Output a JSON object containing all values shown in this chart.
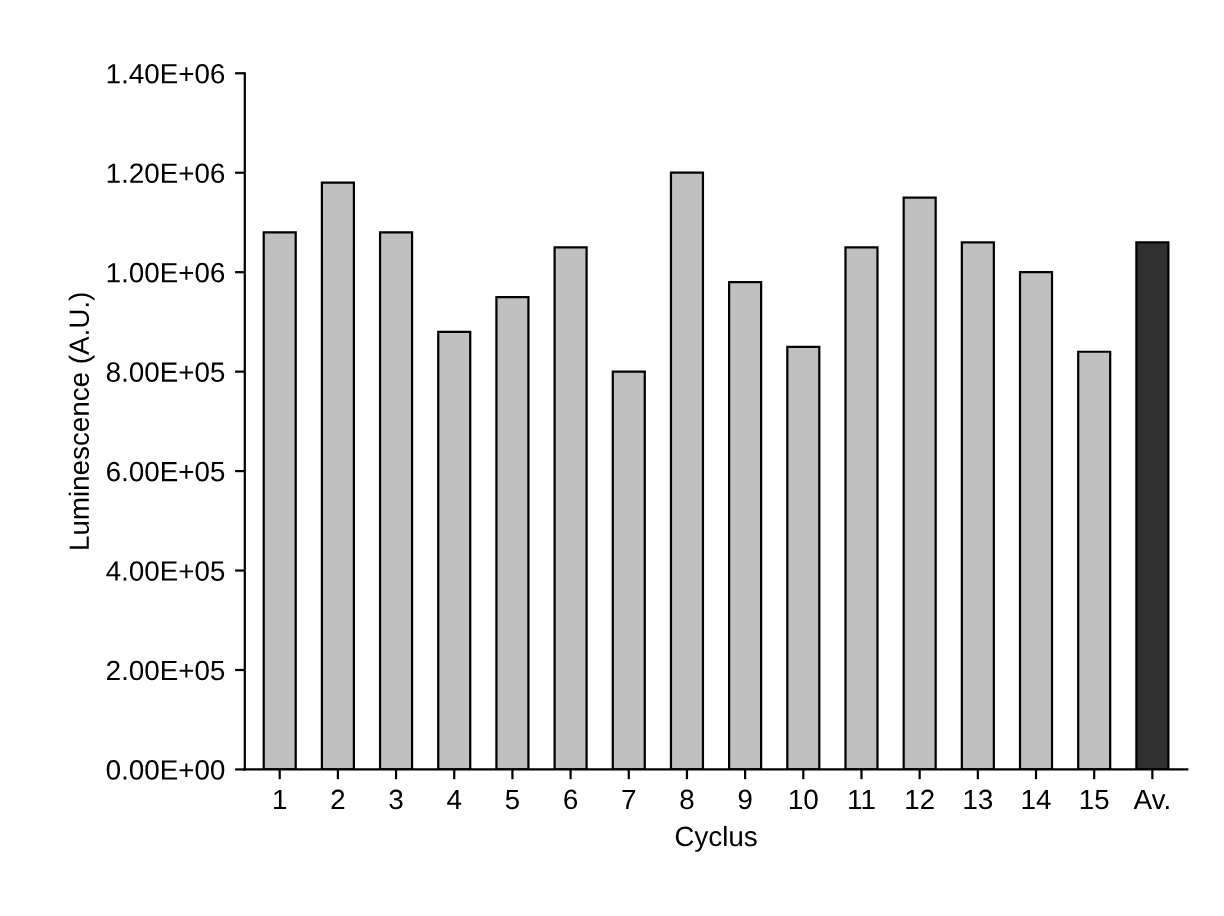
{
  "chart_data": {
    "type": "bar",
    "xlabel": "Cyclus",
    "ylabel": "Luminescence (A.U.)",
    "categories": [
      "1",
      "2",
      "3",
      "4",
      "5",
      "6",
      "7",
      "8",
      "9",
      "10",
      "11",
      "12",
      "13",
      "14",
      "15",
      "Av."
    ],
    "values": [
      1080000,
      1180000,
      1080000,
      880000,
      950000,
      1050000,
      800000,
      1200000,
      980000,
      850000,
      1050000,
      1150000,
      1060000,
      1000000,
      840000,
      1060000
    ],
    "colors": [
      "#c0c0c0",
      "#c0c0c0",
      "#c0c0c0",
      "#c0c0c0",
      "#c0c0c0",
      "#c0c0c0",
      "#c0c0c0",
      "#c0c0c0",
      "#c0c0c0",
      "#c0c0c0",
      "#c0c0c0",
      "#c0c0c0",
      "#c0c0c0",
      "#c0c0c0",
      "#c0c0c0",
      "#303030"
    ],
    "ylim": [
      0,
      1400000
    ],
    "yticks": [
      {
        "value": 0,
        "label": "0.00E+00"
      },
      {
        "value": 200000,
        "label": "2.00E+05"
      },
      {
        "value": 400000,
        "label": "4.00E+05"
      },
      {
        "value": 600000,
        "label": "6.00E+05"
      },
      {
        "value": 800000,
        "label": "8.00E+05"
      },
      {
        "value": 1000000,
        "label": "1.00E+06"
      },
      {
        "value": 1200000,
        "label": "1.20E+06"
      },
      {
        "value": 1400000,
        "label": "1.40E+06"
      }
    ],
    "grid": false,
    "legend": false
  }
}
